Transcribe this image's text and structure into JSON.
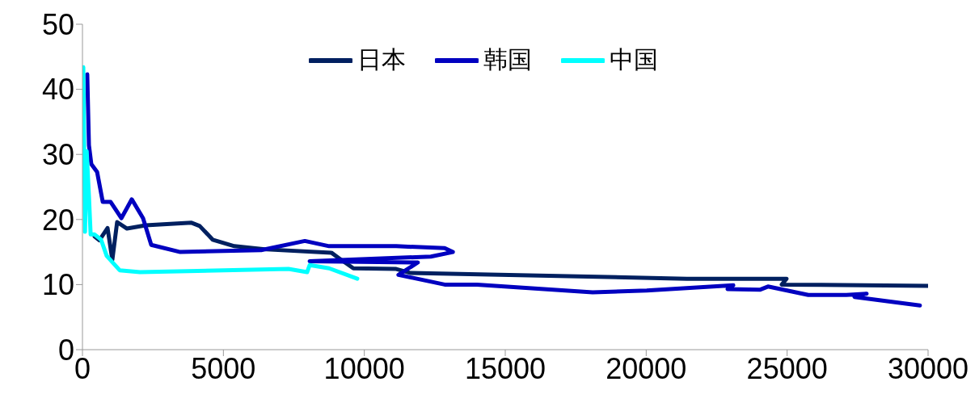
{
  "chart_data": {
    "type": "line",
    "xlim": [
      0,
      30000
    ],
    "xticks": [
      0,
      5000,
      10000,
      15000,
      20000,
      25000,
      30000
    ],
    "ylim": [
      0,
      50
    ],
    "yticks": [
      0,
      10,
      20,
      30,
      40,
      50
    ],
    "grid": false,
    "legend": "top",
    "marker": "none",
    "line_style": "solid",
    "series": [
      {
        "name": "日本",
        "color": "#002060",
        "x": [
          430,
          600,
          890,
          1060,
          1230,
          1580,
          2240,
          3870,
          4160,
          4620,
          5390,
          6540,
          8830,
          9120,
          9610,
          11130,
          11620,
          21450,
          24980,
          24810,
          30000
        ],
        "values": [
          17.4,
          16.8,
          18.7,
          13.8,
          19.6,
          18.6,
          19.1,
          19.5,
          19.0,
          16.9,
          15.9,
          15.4,
          14.9,
          14.0,
          12.5,
          12.4,
          11.8,
          10.9,
          10.9,
          10.0,
          9.8
        ]
      },
      {
        "name": "韩国",
        "color": "#0000c0",
        "x": [
          170,
          230,
          315,
          520,
          720,
          1000,
          1380,
          1750,
          2150,
          2440,
          3470,
          6340,
          7890,
          8750,
          11130,
          12850,
          13140,
          12360,
          8060,
          11900,
          11210,
          12850,
          14000,
          18100,
          20020,
          23090,
          22890,
          24030,
          24320,
          25750,
          27100,
          27820,
          27390,
          29710
        ],
        "values": [
          42.3,
          31.4,
          28.5,
          27.3,
          22.7,
          22.7,
          20.2,
          23.1,
          20.2,
          16.1,
          15.0,
          15.3,
          16.7,
          15.9,
          15.9,
          15.6,
          15.0,
          14.3,
          13.6,
          13.4,
          11.5,
          10.0,
          10.0,
          8.8,
          9.1,
          9.9,
          9.3,
          9.2,
          9.7,
          8.4,
          8.4,
          8.6,
          8.1,
          6.8
        ]
      },
      {
        "name": "中国",
        "color": "#00ffff",
        "x": [
          30,
          90,
          150,
          230,
          290,
          430,
          660,
          860,
          1320,
          2040,
          7310,
          7970,
          8060,
          8750,
          9750
        ],
        "values": [
          43.4,
          18.1,
          30.5,
          23.6,
          17.7,
          17.7,
          16.9,
          14.4,
          12.2,
          11.9,
          12.4,
          11.9,
          13.0,
          12.5,
          10.9
        ]
      }
    ]
  }
}
